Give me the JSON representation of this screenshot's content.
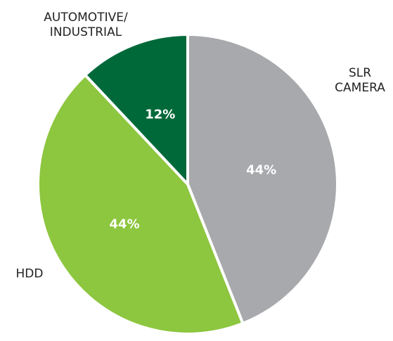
{
  "chart_data": {
    "type": "pie",
    "categories": [
      "SLR\nCAMERA",
      "HDD",
      "AUTOMOTIVE/\nINDUSTRIAL"
    ],
    "values": [
      44,
      44,
      12
    ],
    "value_labels": [
      "44%",
      "44%",
      "12%"
    ],
    "colors": [
      "#a7a9ac",
      "#8dc63f",
      "#00693a"
    ]
  }
}
